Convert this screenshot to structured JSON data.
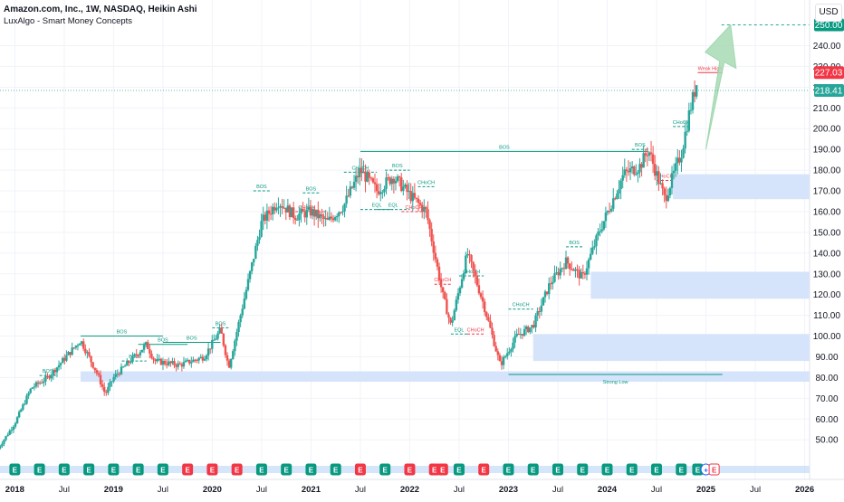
{
  "header": {
    "symbol_line": "Amazon.com, Inc., 1W, NASDAQ, Heikin Ashi",
    "indicator": "LuxAlgo - Smart Money Concepts",
    "currency": "USD"
  },
  "chart_data": {
    "type": "candlestick",
    "style": "Heikin Ashi",
    "ylim": [
      44,
      262
    ],
    "y_ticks": [
      50,
      60,
      70,
      80,
      90,
      100,
      110,
      120,
      130,
      140,
      150,
      160,
      170,
      180,
      190,
      200,
      210,
      220,
      230,
      240
    ],
    "x_ticks": [
      "2018",
      "Jul",
      "2019",
      "Jul",
      "2020",
      "Jul",
      "2021",
      "Jul",
      "2022",
      "Jul",
      "2023",
      "Jul",
      "2024",
      "Jul",
      "2025",
      "Jul",
      "2026"
    ],
    "x_tick_dates": [
      "2018-01",
      "2018-07",
      "2019-01",
      "2019-07",
      "2020-01",
      "2020-07",
      "2021-01",
      "2021-07",
      "2022-01",
      "2022-07",
      "2023-01",
      "2023-07",
      "2024-01",
      "2024-07",
      "2025-01",
      "2025-07",
      "2026-01"
    ],
    "price_labels": [
      {
        "text": "250.00",
        "value": 250,
        "color": "#089981"
      },
      {
        "text": "227.03",
        "value": 227.03,
        "color": "#f23645"
      },
      {
        "text": "218.41",
        "value": 218.41,
        "color": "#26a69a"
      }
    ],
    "anchors": [
      [
        "2017-11",
        46
      ],
      [
        "2018-01",
        58
      ],
      [
        "2018-03",
        75
      ],
      [
        "2018-05",
        80
      ],
      [
        "2018-09",
        98
      ],
      [
        "2018-11",
        82
      ],
      [
        "2018-12",
        72
      ],
      [
        "2019-01",
        80
      ],
      [
        "2019-04",
        92
      ],
      [
        "2019-05",
        96
      ],
      [
        "2019-06",
        88
      ],
      [
        "2019-09",
        86
      ],
      [
        "2019-12",
        90
      ],
      [
        "2020-02",
        103
      ],
      [
        "2020-03",
        85
      ],
      [
        "2020-05",
        120
      ],
      [
        "2020-07",
        155
      ],
      [
        "2020-09",
        165
      ],
      [
        "2020-11",
        158
      ],
      [
        "2021-01",
        160
      ],
      [
        "2021-03",
        155
      ],
      [
        "2021-05",
        163
      ],
      [
        "2021-07",
        180
      ],
      [
        "2021-09",
        170
      ],
      [
        "2021-11",
        177
      ],
      [
        "2022-01",
        168
      ],
      [
        "2022-03",
        160
      ],
      [
        "2022-05",
        120
      ],
      [
        "2022-06",
        105
      ],
      [
        "2022-08",
        140
      ],
      [
        "2022-10",
        115
      ],
      [
        "2022-12",
        86
      ],
      [
        "2023-02",
        100
      ],
      [
        "2023-04",
        105
      ],
      [
        "2023-06",
        125
      ],
      [
        "2023-08",
        136
      ],
      [
        "2023-10",
        128
      ],
      [
        "2023-12",
        150
      ],
      [
        "2024-03",
        178
      ],
      [
        "2024-05",
        182
      ],
      [
        "2024-06",
        190
      ],
      [
        "2024-08",
        166
      ],
      [
        "2024-10",
        188
      ],
      [
        "2024-11",
        208
      ],
      [
        "2024-12",
        224
      ]
    ],
    "smc_levels": [
      {
        "label": "BOS",
        "from": "2018-04",
        "to": "2018-06",
        "y": 81,
        "color": "#089981"
      },
      {
        "label": "BOS",
        "from": "2018-09",
        "to": "2019-07",
        "y": 100,
        "color": "#089981"
      },
      {
        "label": "BOS",
        "from": "2019-04",
        "to": "2019-10",
        "y": 96,
        "color": "#089981"
      },
      {
        "label": "BOS",
        "from": "2019-07",
        "to": "2020-02",
        "y": 97,
        "color": "#089981"
      },
      {
        "label": "BOS",
        "from": "2019-02",
        "to": "2019-05",
        "y": 88,
        "color": "#089981"
      },
      {
        "label": "BOS",
        "from": "2020-01",
        "to": "2020-03",
        "y": 104,
        "color": "#089981"
      },
      {
        "label": "BOS",
        "from": "2020-06",
        "to": "2020-08",
        "y": 170,
        "color": "#089981"
      },
      {
        "label": "BOS",
        "from": "2020-12",
        "to": "2021-02",
        "y": 169,
        "color": "#089981"
      },
      {
        "label": "CHoCH",
        "from": "2020-10",
        "to": "2021-03",
        "y": 160,
        "color": "#f23645"
      },
      {
        "label": "CHoCH",
        "from": "2021-05",
        "to": "2021-09",
        "y": 179,
        "color": "#089981"
      },
      {
        "label": "BOS",
        "from": "2021-10",
        "to": "2022-01",
        "y": 180,
        "color": "#089981"
      },
      {
        "label": "EQL",
        "from": "2021-07",
        "to": "2021-11",
        "y": 161,
        "color": "#089981"
      },
      {
        "label": "EQL",
        "from": "2021-09",
        "to": "2022-01",
        "y": 161,
        "color": "#089981"
      },
      {
        "label": "CHoCH",
        "from": "2021-12",
        "to": "2022-03",
        "y": 160,
        "color": "#f23645"
      },
      {
        "label": "CHoCH",
        "from": "2022-02",
        "to": "2022-04",
        "y": 172,
        "color": "#089981"
      },
      {
        "label": "CHoCH",
        "from": "2022-04",
        "to": "2022-06",
        "y": 125,
        "color": "#f23645"
      },
      {
        "label": "CHoCH",
        "from": "2022-07",
        "to": "2022-10",
        "y": 129,
        "color": "#089981"
      },
      {
        "label": "EQL",
        "from": "2022-06",
        "to": "2022-08",
        "y": 101,
        "color": "#089981"
      },
      {
        "label": "CHoCH",
        "from": "2022-08",
        "to": "2022-10",
        "y": 101,
        "color": "#f23645"
      },
      {
        "label": "CHoCH",
        "from": "2023-01",
        "to": "2023-04",
        "y": 113,
        "color": "#089981"
      },
      {
        "label": "BOS",
        "from": "2023-08",
        "to": "2023-10",
        "y": 143,
        "color": "#089981"
      },
      {
        "label": "BOS",
        "from": "2021-07",
        "to": "2024-06",
        "y": 189,
        "color": "#089981"
      },
      {
        "label": "BOS",
        "from": "2024-04",
        "to": "2024-06",
        "y": 190,
        "color": "#089981"
      },
      {
        "label": "CHoCH",
        "from": "2024-07",
        "to": "2024-09",
        "y": 175,
        "color": "#f23645"
      },
      {
        "label": "CHoCH",
        "from": "2024-09",
        "to": "2024-11",
        "y": 201,
        "color": "#089981"
      },
      {
        "label": "Weak High",
        "from": "2024-12",
        "to": "2025-03",
        "y": 227,
        "color": "#f23645"
      },
      {
        "label": "Strong Low",
        "from": "2023-01",
        "to": "2025-03",
        "y": 81.5,
        "color": "#089981"
      }
    ],
    "order_blocks": [
      {
        "from": "2018-09",
        "to": "2026-04",
        "y0": 78,
        "y1": 83
      },
      {
        "from": "2023-04",
        "to": "2026-04",
        "y0": 88,
        "y1": 101
      },
      {
        "from": "2023-11",
        "to": "2026-04",
        "y0": 118,
        "y1": 131
      },
      {
        "from": "2024-09",
        "to": "2026-04",
        "y0": 166,
        "y1": 178
      }
    ],
    "target_arrow": {
      "from": [
        "2025-01",
        190
      ],
      "to": [
        "2025-04",
        250
      ]
    },
    "events": [
      "E",
      "E",
      "E",
      "E",
      "E",
      "E",
      "E",
      "E",
      "E",
      "E",
      "E",
      "E",
      "E",
      "E",
      "E",
      "E",
      "E",
      "E",
      "E",
      "E",
      "E",
      "E",
      "E",
      "E",
      "E",
      "E",
      "E",
      "E",
      "E",
      "E",
      "+",
      "E"
    ],
    "event_colors": [
      "#089981",
      "#089981",
      "#089981",
      "#089981",
      "#089981",
      "#089981",
      "#089981",
      "#f23645",
      "#f23645",
      "#f23645",
      "#089981",
      "#089981",
      "#089981",
      "#089981",
      "#f23645",
      "#089981",
      "#f23645",
      "#f23645",
      "#f23645",
      "#089981",
      "#f23645",
      "#089981",
      "#089981",
      "#089981",
      "#089981",
      "#089981",
      "#089981",
      "#089981",
      "#089981",
      "#089981",
      "#2962ff",
      "#f23645"
    ],
    "event_dates": [
      "2018-01",
      "2018-04",
      "2018-07",
      "2018-10",
      "2019-01",
      "2019-04",
      "2019-07",
      "2019-10",
      "2020-01",
      "2020-04",
      "2020-07",
      "2020-10",
      "2021-01",
      "2021-04",
      "2021-07",
      "2021-10",
      "2022-01",
      "2022-04",
      "2022-05",
      "2022-07",
      "2022-10",
      "2023-01",
      "2023-04",
      "2023-07",
      "2023-10",
      "2024-01",
      "2024-04",
      "2024-07",
      "2024-10",
      "2024-12",
      "2025-01",
      "2025-02"
    ]
  },
  "colors": {
    "up": "#26a69a",
    "down": "#ef5350",
    "ob": "#d6e4fb",
    "grid": "#f0f3fa",
    "arrow": "#a8dbb5"
  }
}
